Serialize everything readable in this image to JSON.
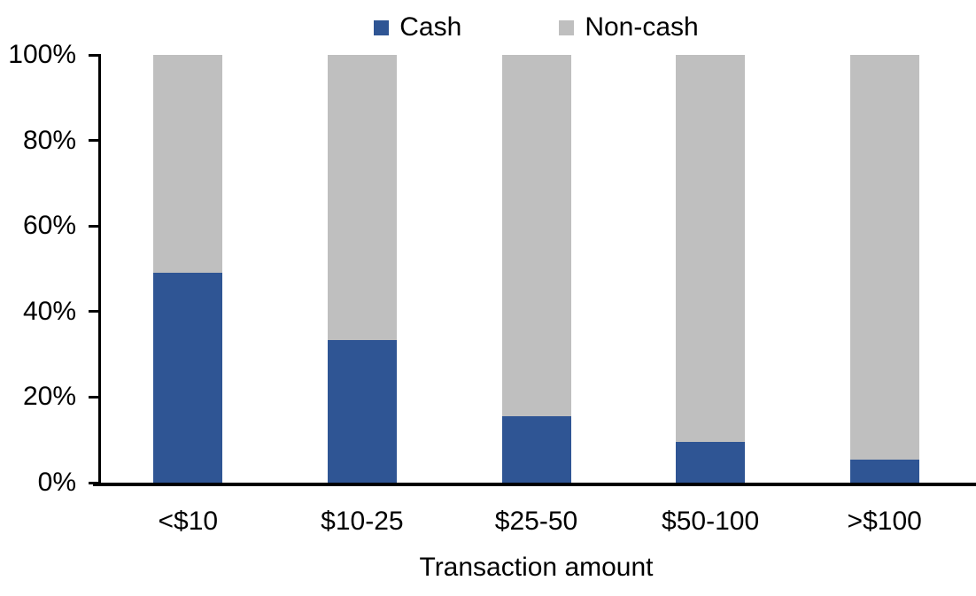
{
  "chart_data": {
    "type": "bar",
    "variant": "stacked-100-percent",
    "title": "",
    "xlabel": "Transaction amount",
    "ylabel": "",
    "categories": [
      "<$10",
      "$10-25",
      "$25-50",
      "$50-100",
      ">$100"
    ],
    "series": [
      {
        "name": "Cash",
        "color": "#2F5594",
        "values": [
          49,
          33.3,
          15.5,
          9.5,
          5.4
        ]
      },
      {
        "name": "Non-cash",
        "color": "#BFBFBF",
        "values": [
          51,
          66.7,
          84.5,
          90.5,
          94.6
        ]
      }
    ],
    "ylim": [
      0,
      100
    ],
    "yticks": [
      {
        "value": 0,
        "label": "0%"
      },
      {
        "value": 20,
        "label": "20%"
      },
      {
        "value": 40,
        "label": "40%"
      },
      {
        "value": 60,
        "label": "60%"
      },
      {
        "value": 80,
        "label": "80%"
      },
      {
        "value": 100,
        "label": "100%"
      }
    ],
    "grid": false,
    "legend_position": "top-center",
    "axis_color": "#000000",
    "text_color": "#000000",
    "background_color": "#FFFFFF"
  }
}
